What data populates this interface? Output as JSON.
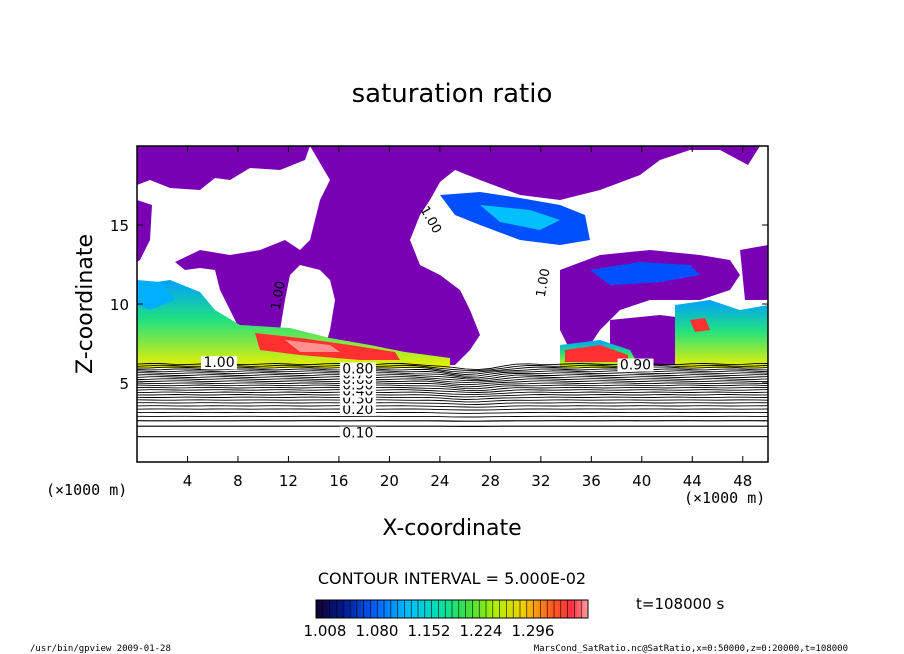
{
  "chart_data": {
    "type": "contour",
    "title": "saturation ratio",
    "xlabel": "X-coordinate",
    "ylabel": "Z-coordinate",
    "x_unit": "(×1000 m)",
    "z_unit": "(×1000 m)",
    "xlim": [
      0,
      50
    ],
    "ylim": [
      0,
      20
    ],
    "x_ticks": [
      4,
      8,
      12,
      16,
      20,
      24,
      28,
      32,
      36,
      40,
      44,
      48
    ],
    "y_ticks": [
      5,
      10,
      15
    ],
    "contour_interval_label": "CONTOUR INTERVAL = 5.000E-02",
    "time_label": "t=108000 s",
    "contour_labels": [
      "0.10",
      "0.20",
      "0.30",
      "0.40",
      "0.50",
      "0.60",
      "0.70",
      "0.80",
      "0.90",
      "1.00"
    ],
    "colorbar_ticks": [
      "1.008",
      "1.080",
      "1.152",
      "1.224",
      "1.296"
    ],
    "colorbar_colors": [
      "#1a0040",
      "#0018a0",
      "#0050ff",
      "#00b0ff",
      "#00e0c0",
      "#20e060",
      "#a0f000",
      "#f0e000",
      "#ff8000",
      "#ff3030",
      "#ff9090"
    ],
    "field_colors": {
      "undersaturated": "#7a00b4",
      "unsaturated_blank": "#ffffff"
    },
    "footer_left": "/usr/bin/gpview  2009-01-28",
    "footer_right": "MarsCond_SatRatio.nc@SatRatio,x=0:50000,z=0:20000,t=108000"
  }
}
